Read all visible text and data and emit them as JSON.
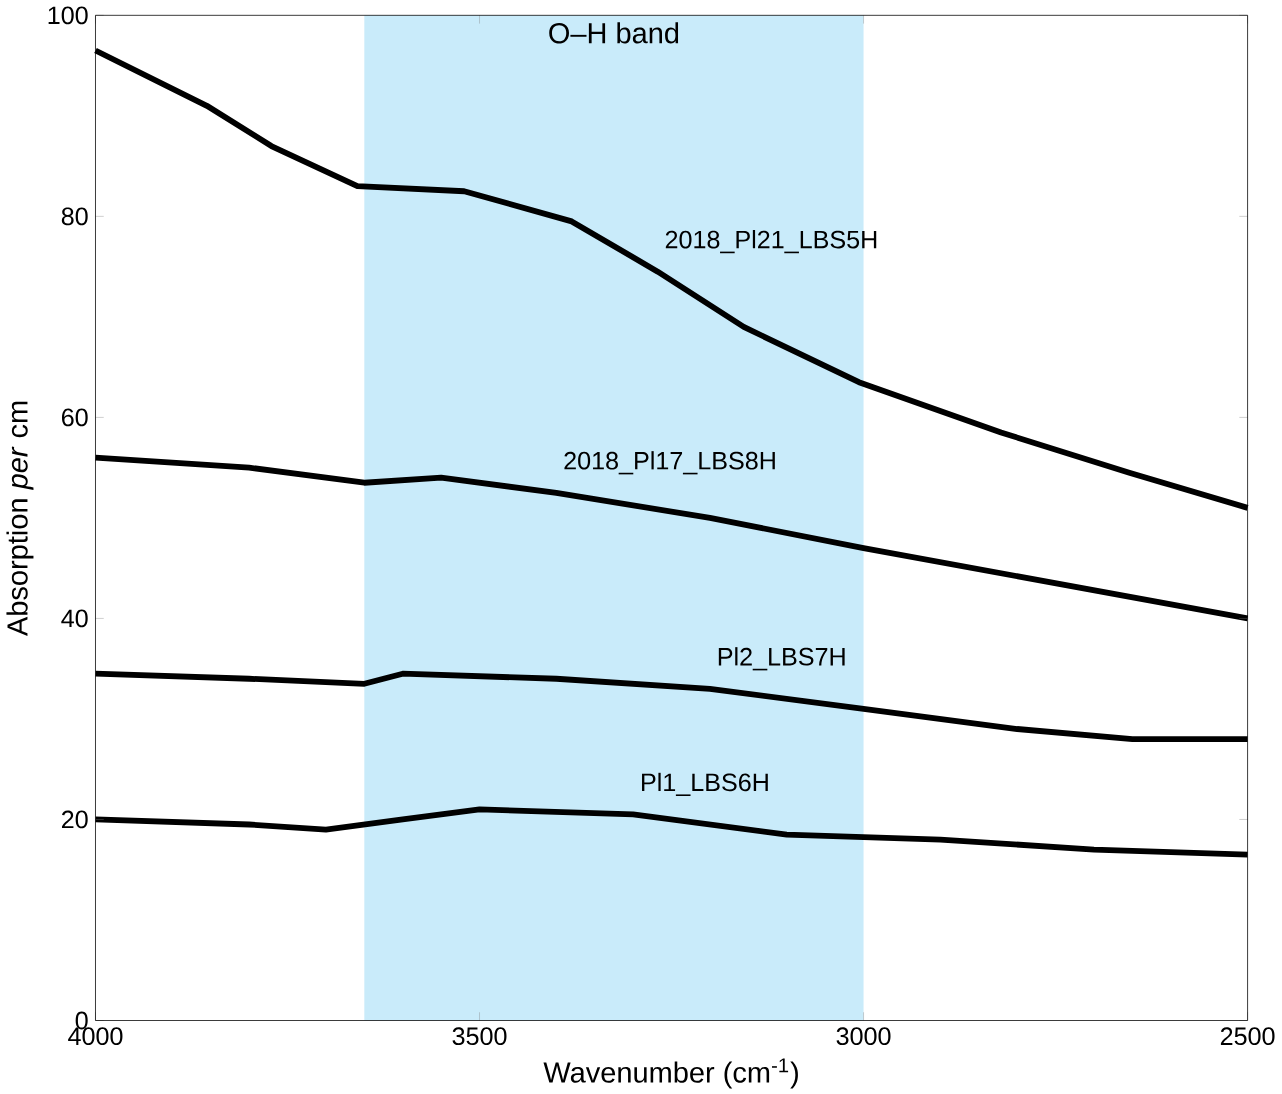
{
  "chart_data": {
    "type": "line",
    "xlabel": "Wavenumber (cm$^{-1}$)",
    "ylabel": "Absorption *per* cm",
    "xlim": [
      4000,
      2500
    ],
    "ylim": [
      0,
      100
    ],
    "xticks": [
      4000,
      3500,
      3000,
      2500
    ],
    "yticks": [
      0,
      20,
      40,
      60,
      80,
      100
    ],
    "grid": false,
    "marker": "none",
    "line_style": "solid",
    "bands": [
      {
        "axis": "x",
        "from": 3650,
        "to": 3000,
        "label": "O–H band",
        "color": "#c9ebfa"
      }
    ],
    "series": [
      {
        "name": "2018_Pl21_LBS5H",
        "color": "#000000",
        "x": [
          4000,
          3855,
          3771,
          3659,
          3520,
          3380,
          3268,
          3156,
          3006,
          2821,
          2654,
          2500
        ],
        "values": [
          96.5,
          91,
          87,
          83,
          82.5,
          79.5,
          74.5,
          69,
          63.5,
          58.5,
          54.5,
          51
        ]
      },
      {
        "name": "2018_Pl17_LBS8H",
        "color": "#000000",
        "x": [
          4000,
          3800,
          3650,
          3550,
          3400,
          3200,
          3000,
          2750,
          2500
        ],
        "values": [
          56,
          55,
          53.5,
          54,
          52.5,
          50,
          47,
          43.5,
          40
        ]
      },
      {
        "name": "Pl2_LBS7H",
        "color": "#000000",
        "x": [
          4000,
          3800,
          3650,
          3600,
          3400,
          3200,
          3000,
          2800,
          2650,
          2500
        ],
        "values": [
          34.5,
          34,
          33.5,
          34.5,
          34,
          33,
          31,
          29,
          28,
          28
        ]
      },
      {
        "name": "Pl1_LBS6H",
        "color": "#000000",
        "x": [
          4000,
          3800,
          3700,
          3600,
          3500,
          3300,
          3100,
          2900,
          2700,
          2500
        ],
        "values": [
          20,
          19.5,
          19,
          20,
          21,
          20.5,
          18.5,
          18,
          17,
          16.5
        ]
      }
    ]
  }
}
